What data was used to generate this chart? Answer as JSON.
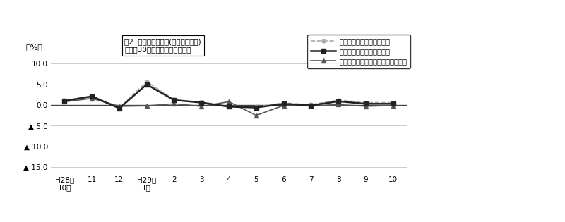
{
  "title_line1": "図2  賃金指数の推移(対前年同月比)",
  "title_line2": "－規模30人以上－　調査産業計",
  "ylabel": "（%）",
  "x_labels": [
    "H28年\n10月",
    "11",
    "12",
    "H29年\n1月",
    "2",
    "3",
    "4",
    "5",
    "6",
    "7",
    "8",
    "9",
    "10"
  ],
  "nominal_values": [
    1.1,
    2.2,
    -0.7,
    5.7,
    1.3,
    0.7,
    -0.3,
    -0.4,
    0.5,
    0.1,
    1.2,
    0.6,
    0.6
  ],
  "real_total_values": [
    1.0,
    2.1,
    -0.8,
    5.0,
    1.2,
    0.6,
    -0.4,
    -0.6,
    0.3,
    -0.1,
    0.9,
    0.3,
    0.3
  ],
  "real_fixed_values": [
    0.8,
    1.6,
    -0.3,
    -0.2,
    0.3,
    -0.3,
    0.8,
    -2.5,
    -0.1,
    -0.2,
    0.1,
    -0.3,
    -0.1
  ],
  "nominal_label": "名目賃金（現金給与総額）",
  "real_total_label": "実質賃金（現金給与総額）",
  "real_fixed_label": "実質賃金（きまって支給する給与）",
  "nominal_color": "#aaaaaa",
  "real_total_color": "#222222",
  "real_fixed_color": "#555555",
  "ylim_min": -16.5,
  "ylim_max": 12.0,
  "yticks": [
    10.0,
    5.0,
    0.0,
    -5.0,
    -10.0,
    -15.0
  ],
  "ytick_labels": [
    "10.0",
    "5.0",
    "0.0",
    "▲ 5.0",
    "▲ 10.0",
    "▲ 15.0"
  ],
  "grid_color": "#cccccc",
  "bg_color": "#ffffff",
  "zero_line_color": "#444444"
}
